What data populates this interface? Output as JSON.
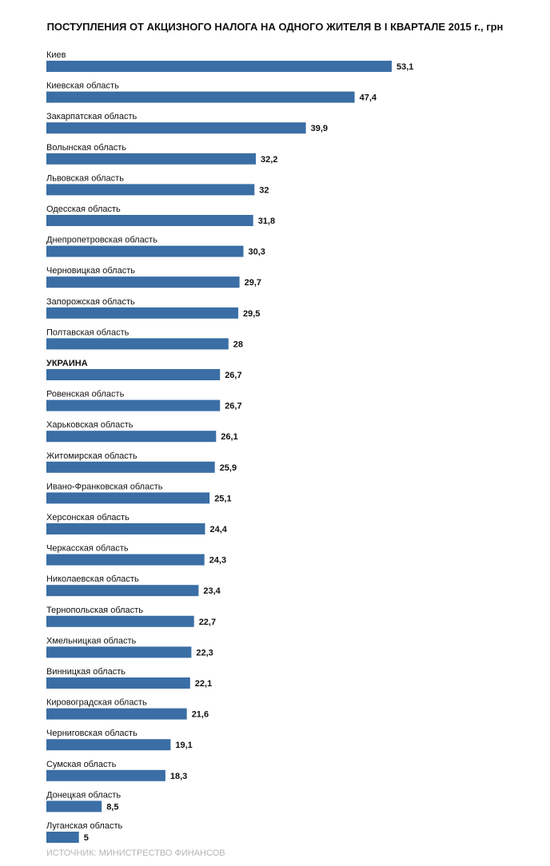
{
  "chart_data": {
    "type": "bar",
    "orientation": "horizontal",
    "title": "ПОСТУПЛЕНИЯ ОТ АКЦИЗНОГО НАЛОГА НА ОДНОГО ЖИТЕЛЯ В I КВАРТАЛЕ 2015 г., грн",
    "source": "ИСТОЧНИК: МИНИСТРЕСТВО ФИНАНСОВ",
    "bar_color": "#3a6ea5",
    "categories": [
      "Киев",
      "Киевская область",
      "Закарпатская область",
      "Волынская область",
      "Львовская область",
      "Одесская область",
      "Днепропетровская область",
      "Черновицкая область",
      "Запорожская область",
      "Полтавская область",
      "УКРАИНА",
      "Ровенская область",
      "Харьковская область",
      "Житомирская область",
      "Ивано-Франковская область",
      "Херсонская область",
      "Черкасская область",
      "Николаевская область",
      "Тернопольская область",
      "Хмельницкая область",
      "Винницкая область",
      "Кировоградская область",
      "Черниговская область",
      "Сумская область",
      "Донецкая область",
      "Луганская область"
    ],
    "values": [
      53.1,
      47.4,
      39.9,
      32.2,
      32,
      31.8,
      30.3,
      29.7,
      29.5,
      28,
      26.7,
      26.7,
      26.1,
      25.9,
      25.1,
      24.4,
      24.3,
      23.4,
      22.7,
      22.3,
      22.1,
      21.6,
      19.1,
      18.3,
      8.5,
      5
    ],
    "value_labels": [
      "53,1",
      "47,4",
      "39,9",
      "32,2",
      "32",
      "31,8",
      "30,3",
      "29,7",
      "29,5",
      "28",
      "26,7",
      "26,7",
      "26,1",
      "25,9",
      "25,1",
      "24,4",
      "24,3",
      "23,4",
      "22,7",
      "22,3",
      "22,1",
      "21,6",
      "19,1",
      "18,3",
      "8,5",
      "5"
    ],
    "highlight": "УКРАИНА",
    "xlim": [
      0,
      53.1
    ],
    "grid": false,
    "legend": "none"
  }
}
